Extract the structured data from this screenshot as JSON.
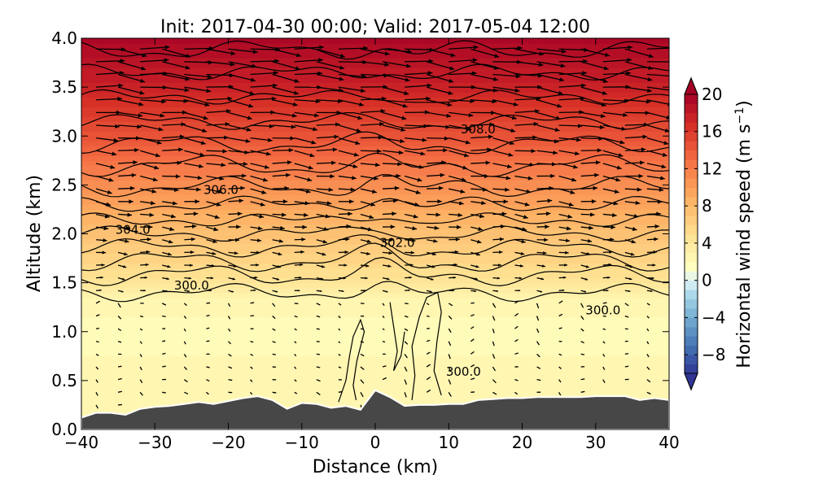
{
  "chart_data": {
    "type": "heatmap",
    "subtype": "filled contour cross-section with isentrope contours and wind vectors",
    "title": "Init: 2017-04-30 00:00; Valid: 2017-05-04 12:00",
    "xlabel": "Distance (km)",
    "ylabel": "Altitude (km)",
    "xlim": [
      -40,
      40
    ],
    "ylim": [
      0.0,
      4.0
    ],
    "x_ticks": [
      -40,
      -30,
      -20,
      -10,
      0,
      10,
      20,
      30,
      40
    ],
    "x_tick_labels": [
      "−40",
      "−30",
      "−20",
      "−10",
      "0",
      "10",
      "20",
      "30",
      "40"
    ],
    "y_ticks": [
      0.0,
      0.5,
      1.0,
      1.5,
      2.0,
      2.5,
      3.0,
      3.5,
      4.0
    ],
    "y_tick_labels": [
      "0.0",
      "0.5",
      "1.0",
      "1.5",
      "2.0",
      "2.5",
      "3.0",
      "3.5",
      "4.0"
    ],
    "colorbar": {
      "label": "Horizontal wind speed (m s⁻¹)",
      "label_main": "Horizontal wind speed (m s",
      "label_sup": "−1",
      "label_close": ")",
      "range": [
        -10,
        20
      ],
      "ticks": [
        -8,
        -4,
        0,
        4,
        8,
        12,
        16,
        20
      ],
      "tick_labels": [
        "−8",
        "−4",
        "0",
        "4",
        "8",
        "12",
        "16",
        "20"
      ],
      "colormap": "RdYlBu_r",
      "extend": "both"
    },
    "colormap_stops": [
      {
        "value": -10,
        "color": "#313695"
      },
      {
        "value": -7,
        "color": "#4575b4"
      },
      {
        "value": -4,
        "color": "#74add1"
      },
      {
        "value": -1.5,
        "color": "#abd9e9"
      },
      {
        "value": 0,
        "color": "#e0f3f8"
      },
      {
        "value": 1.5,
        "color": "#ffffbf"
      },
      {
        "value": 5,
        "color": "#fee090"
      },
      {
        "value": 9,
        "color": "#fdae61"
      },
      {
        "value": 13,
        "color": "#f46d43"
      },
      {
        "value": 16.5,
        "color": "#d73027"
      },
      {
        "value": 20,
        "color": "#a50026"
      }
    ],
    "wind_speed_profile": [
      {
        "altitude_km": 0.0,
        "speed_ms": 2.5
      },
      {
        "altitude_km": 0.5,
        "speed_ms": 2.5
      },
      {
        "altitude_km": 1.0,
        "speed_ms": 2.0
      },
      {
        "altitude_km": 1.3,
        "speed_ms": 2.5
      },
      {
        "altitude_km": 1.6,
        "speed_ms": 5.0
      },
      {
        "altitude_km": 2.0,
        "speed_ms": 7.5
      },
      {
        "altitude_km": 2.5,
        "speed_ms": 11.0
      },
      {
        "altitude_km": 3.0,
        "speed_ms": 14.5
      },
      {
        "altitude_km": 3.5,
        "speed_ms": 17.5
      },
      {
        "altitude_km": 4.0,
        "speed_ms": 19.5
      }
    ],
    "terrain": {
      "distance_km": [
        -40,
        -38,
        -36,
        -34,
        -32,
        -30,
        -28,
        -26,
        -24,
        -22,
        -20,
        -18,
        -16,
        -14,
        -12,
        -10,
        -8,
        -6,
        -4,
        -2,
        0,
        2,
        4,
        6,
        8,
        10,
        12,
        14,
        16,
        18,
        20,
        22,
        24,
        26,
        28,
        30,
        32,
        34,
        36,
        38,
        40
      ],
      "height_km": [
        0.12,
        0.17,
        0.17,
        0.15,
        0.21,
        0.23,
        0.24,
        0.26,
        0.28,
        0.26,
        0.29,
        0.32,
        0.34,
        0.3,
        0.21,
        0.27,
        0.26,
        0.22,
        0.24,
        0.2,
        0.4,
        0.33,
        0.24,
        0.25,
        0.25,
        0.26,
        0.26,
        0.3,
        0.31,
        0.32,
        0.32,
        0.33,
        0.33,
        0.33,
        0.33,
        0.34,
        0.34,
        0.34,
        0.3,
        0.32,
        0.3
      ]
    },
    "contour_labels": [
      {
        "text": "308.0",
        "x_km": 14,
        "alt_km": 3.07
      },
      {
        "text": "306.0",
        "x_km": -21,
        "alt_km": 2.45
      },
      {
        "text": "304.0",
        "x_km": -33,
        "alt_km": 2.04
      },
      {
        "text": "302.0",
        "x_km": 3,
        "alt_km": 1.91
      },
      {
        "text": "300.0",
        "x_km": -25,
        "alt_km": 1.47
      },
      {
        "text": "300.0",
        "x_km": 31,
        "alt_km": 1.22
      },
      {
        "text": "300.0",
        "x_km": 12,
        "alt_km": 0.59
      }
    ]
  }
}
